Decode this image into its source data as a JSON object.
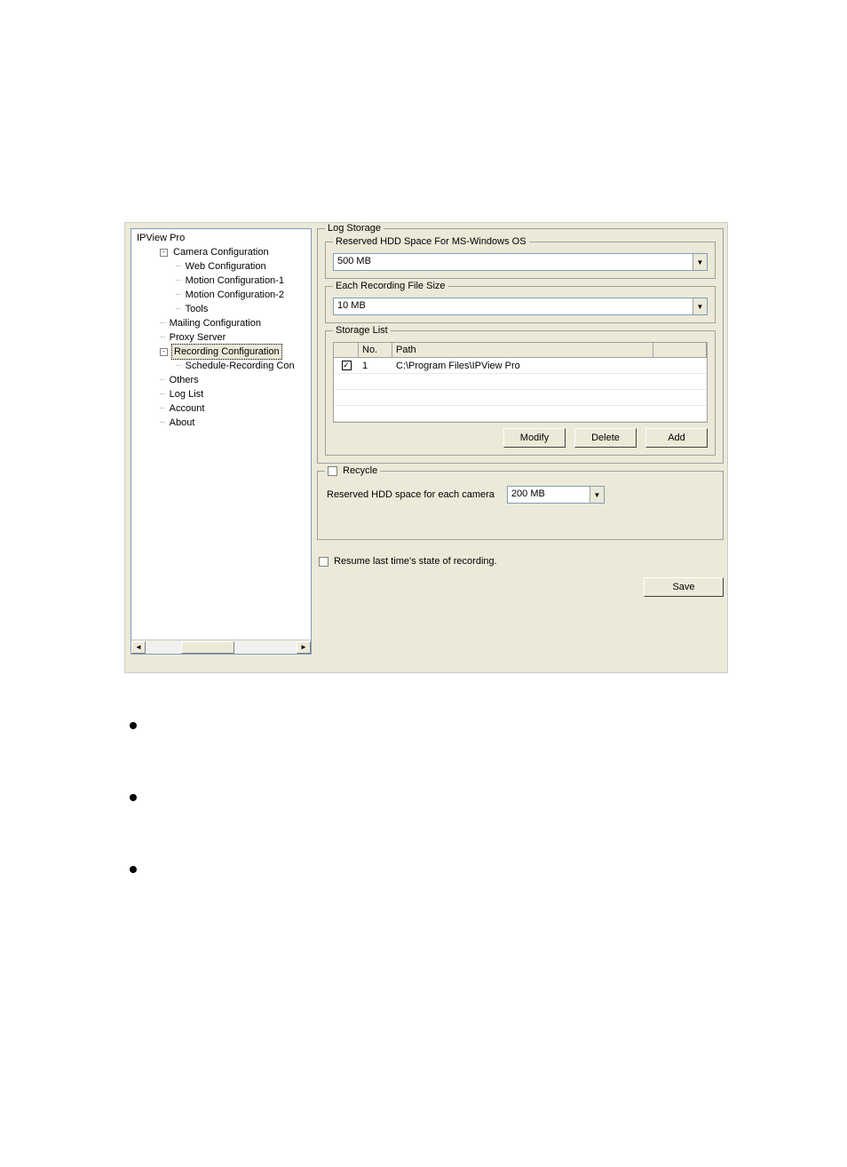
{
  "tree": {
    "root": "IPView Pro",
    "items": [
      {
        "label": "Camera Configuration",
        "indent": 1,
        "toggle": "-"
      },
      {
        "label": "Web Configuration",
        "indent": 2
      },
      {
        "label": "Motion Configuration-1",
        "indent": 2
      },
      {
        "label": "Motion Configuration-2",
        "indent": 2
      },
      {
        "label": "Tools",
        "indent": 2
      },
      {
        "label": "Mailing Configuration",
        "indent": 1
      },
      {
        "label": "Proxy Server",
        "indent": 1
      },
      {
        "label": "Recording Configuration",
        "indent": 1,
        "toggle": "-",
        "selected": true
      },
      {
        "label": "Schedule-Recording Con",
        "indent": 2
      },
      {
        "label": "Others",
        "indent": 1
      },
      {
        "label": "Log List",
        "indent": 1
      },
      {
        "label": "Account",
        "indent": 1
      },
      {
        "label": "About",
        "indent": 1
      }
    ]
  },
  "logStorage": {
    "legend": "Log Storage",
    "reserved": {
      "legend": "Reserved HDD Space For MS-Windows OS",
      "value": "500 MB"
    },
    "fileSize": {
      "legend": "Each Recording File Size",
      "value": "10 MB"
    },
    "storageList": {
      "legend": "Storage List",
      "cols": {
        "no": "No.",
        "path": "Path"
      },
      "rows": [
        {
          "checked": true,
          "no": "1",
          "path": "C:\\Program Files\\IPView Pro"
        }
      ],
      "buttons": {
        "modify": "Modify",
        "delete": "Delete",
        "add": "Add"
      }
    }
  },
  "recycle": {
    "legend": "Recycle",
    "label": "Reserved HDD space for each camera",
    "value": "200 MB"
  },
  "resume": {
    "label": "Resume last time's state of recording."
  },
  "save": {
    "label": "Save"
  },
  "colors": {
    "panel": "#ece9d8",
    "border": "#a0a0a0",
    "inputBorder": "#7f9db9"
  }
}
